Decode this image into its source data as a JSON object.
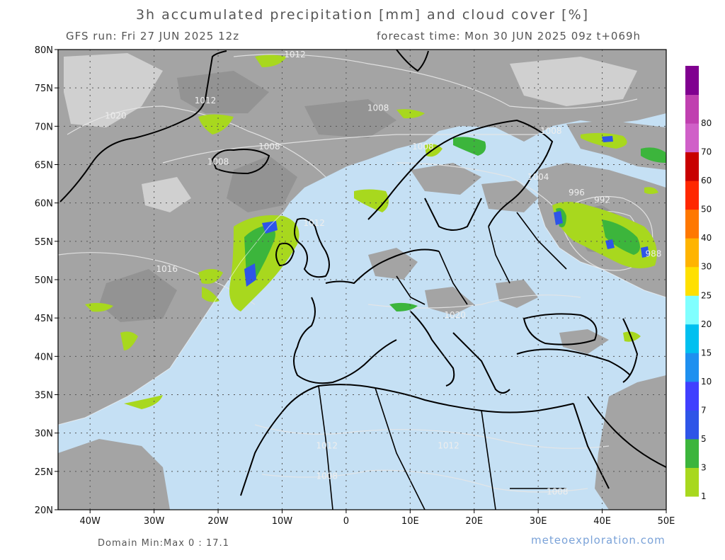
{
  "header": {
    "title": "3h accumulated precipitation [mm] and cloud cover [%]",
    "run": "GFS run: Fri 27 JUN 2025 12z",
    "forecast": "forecast time: Mon 30 JUN 2025 09z  t+069h"
  },
  "footer": {
    "minmax": "Domain Min:Max 0 : 17.1",
    "brand": "meteoexploration.com"
  },
  "axes": {
    "lat_labels": [
      "80N",
      "75N",
      "70N",
      "65N",
      "60N",
      "55N",
      "50N",
      "45N",
      "40N",
      "35N",
      "30N",
      "25N",
      "20N"
    ],
    "lon_labels": [
      "40W",
      "30W",
      "20W",
      "10W",
      "0",
      "10E",
      "20E",
      "30E",
      "40E",
      "50E"
    ]
  },
  "isobars": [
    {
      "label": "1012",
      "lon": -8,
      "lat": 79
    },
    {
      "label": "1012",
      "lon": -22,
      "lat": 73
    },
    {
      "label": "1020",
      "lon": -36,
      "lat": 71
    },
    {
      "label": "1008",
      "lon": 5,
      "lat": 72
    },
    {
      "label": "1008",
      "lon": -12,
      "lat": 67
    },
    {
      "label": "1008",
      "lon": -20,
      "lat": 65
    },
    {
      "label": "1008",
      "lon": 32,
      "lat": 69
    },
    {
      "label": "1008",
      "lon": 12,
      "lat": 67
    },
    {
      "label": "1004",
      "lon": 30,
      "lat": 63
    },
    {
      "label": "996",
      "lon": 36,
      "lat": 61
    },
    {
      "label": "992",
      "lon": 40,
      "lat": 60
    },
    {
      "label": "988",
      "lon": 48,
      "lat": 53
    },
    {
      "label": "1012",
      "lon": -5,
      "lat": 57
    },
    {
      "label": "1016",
      "lon": -28,
      "lat": 51
    },
    {
      "label": "1020",
      "lon": 17,
      "lat": 45
    },
    {
      "label": "1012",
      "lon": -3,
      "lat": 28
    },
    {
      "label": "1012",
      "lon": 16,
      "lat": 28
    },
    {
      "label": "1008",
      "lon": -3,
      "lat": 24
    },
    {
      "label": "1008",
      "lon": 33,
      "lat": 22
    }
  ],
  "colorbar": {
    "labels": [
      "1",
      "3",
      "5",
      "7",
      "10",
      "15",
      "20",
      "25",
      "30",
      "40",
      "50",
      "60",
      "70",
      "80"
    ],
    "colors": [
      "#a8d81e",
      "#3cb53c",
      "#2e55e8",
      "#4040ff",
      "#1e90f0",
      "#00c0f0",
      "#80ffff",
      "#ffe000",
      "#ffb400",
      "#ff7800",
      "#ff2800",
      "#c80000",
      "#d060c8",
      "#c040b0",
      "#800090"
    ]
  },
  "colors": {
    "sea_clear": "#c5e0f4",
    "cloud": "#a4a4a4",
    "cloud_dark": "#8c8c8c",
    "cloud_light": "#d8d8d8",
    "coast": "#000000"
  }
}
